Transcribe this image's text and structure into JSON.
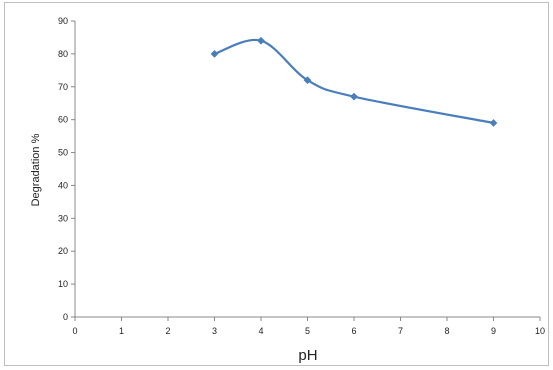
{
  "chart_data": {
    "type": "line",
    "title": "",
    "xlabel": "pH",
    "ylabel": "Degradation %",
    "xlim": [
      0,
      10
    ],
    "ylim": [
      0,
      90
    ],
    "x_ticks": [
      0,
      1,
      2,
      3,
      4,
      5,
      6,
      7,
      8,
      9,
      10
    ],
    "y_ticks": [
      0,
      10,
      20,
      30,
      40,
      50,
      60,
      70,
      80,
      90
    ],
    "grid": false,
    "legend": "none",
    "smooth": true,
    "series": [
      {
        "x": [
          3,
          4,
          5,
          6,
          9
        ],
        "y": [
          80,
          84,
          72,
          67,
          59
        ],
        "color": "#4a7ebb",
        "marker": "diamond"
      }
    ]
  }
}
